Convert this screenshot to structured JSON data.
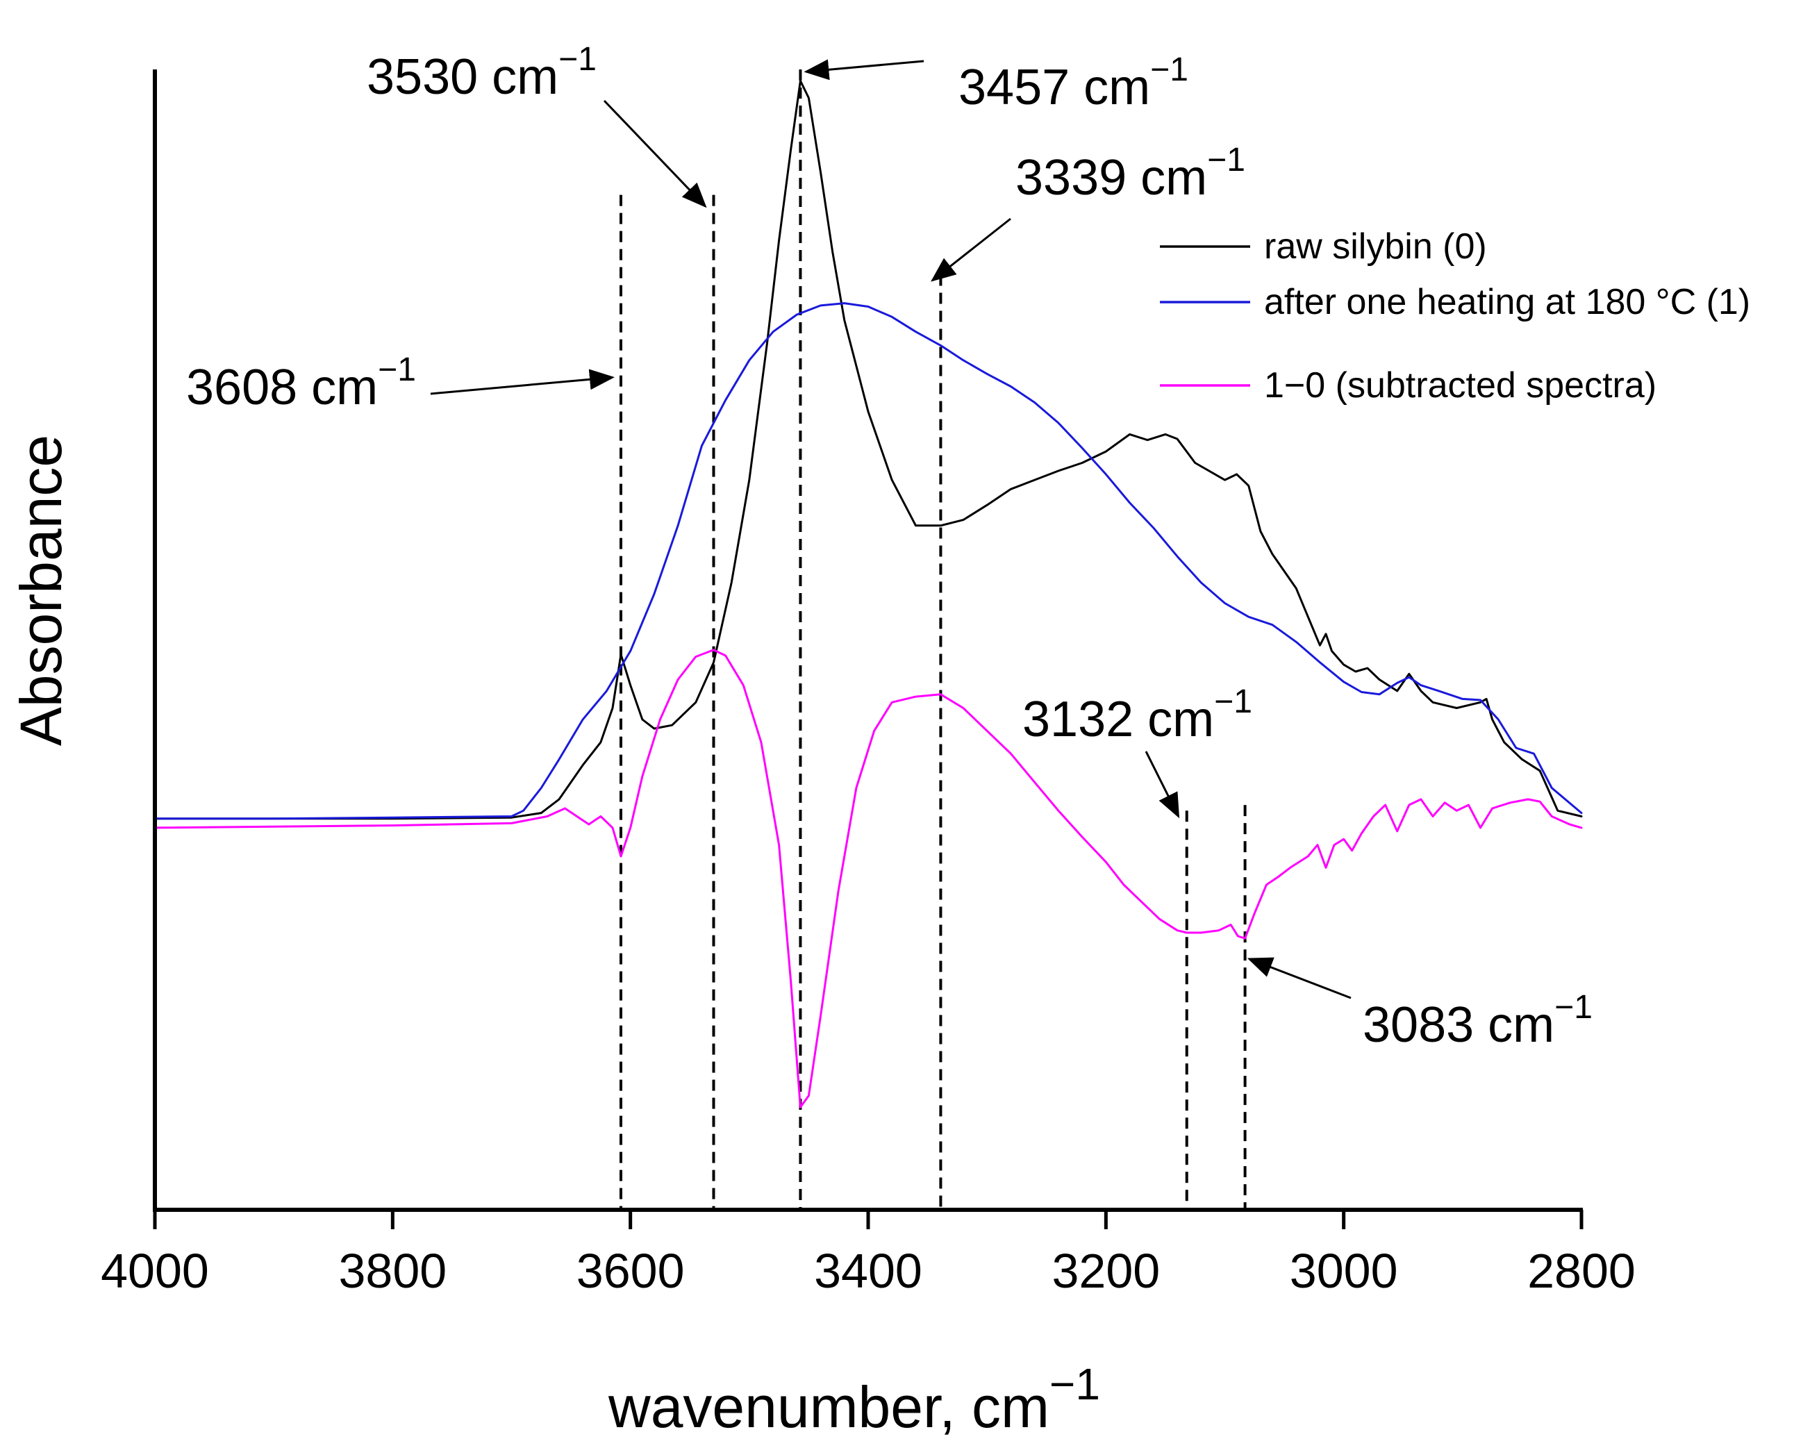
{
  "chart_data": {
    "type": "line",
    "title": "",
    "xlabel": "wavenumber, cm",
    "xlabel_sup": "−1",
    "ylabel": "Absorbance",
    "xlim": [
      4000,
      2800
    ],
    "ylim": [
      0,
      1
    ],
    "x_reversed": true,
    "grid": false,
    "legend_position": "top-right",
    "x_ticks": [
      {
        "value": 4000,
        "label": "4000"
      },
      {
        "value": 3800,
        "label": "3800"
      },
      {
        "value": 3600,
        "label": "3600"
      },
      {
        "value": 3400,
        "label": "3400"
      },
      {
        "value": 3200,
        "label": "3200"
      },
      {
        "value": 3000,
        "label": "3000"
      },
      {
        "value": 2800,
        "label": "2800"
      }
    ],
    "series": [
      {
        "name": "raw silybin (0)",
        "color": "#000000",
        "points": [
          [
            4000,
            0.343
          ],
          [
            3900,
            0.343
          ],
          [
            3800,
            0.343
          ],
          [
            3700,
            0.344
          ],
          [
            3675,
            0.348
          ],
          [
            3660,
            0.36
          ],
          [
            3640,
            0.39
          ],
          [
            3625,
            0.41
          ],
          [
            3615,
            0.44
          ],
          [
            3608,
            0.487
          ],
          [
            3600,
            0.46
          ],
          [
            3590,
            0.43
          ],
          [
            3580,
            0.422
          ],
          [
            3565,
            0.425
          ],
          [
            3545,
            0.445
          ],
          [
            3530,
            0.48
          ],
          [
            3515,
            0.55
          ],
          [
            3500,
            0.64
          ],
          [
            3485,
            0.76
          ],
          [
            3475,
            0.85
          ],
          [
            3465,
            0.93
          ],
          [
            3457,
            0.99
          ],
          [
            3450,
            0.975
          ],
          [
            3440,
            0.91
          ],
          [
            3430,
            0.84
          ],
          [
            3420,
            0.78
          ],
          [
            3400,
            0.7
          ],
          [
            3380,
            0.64
          ],
          [
            3360,
            0.6
          ],
          [
            3339,
            0.6
          ],
          [
            3320,
            0.605
          ],
          [
            3300,
            0.618
          ],
          [
            3280,
            0.632
          ],
          [
            3260,
            0.64
          ],
          [
            3240,
            0.648
          ],
          [
            3220,
            0.655
          ],
          [
            3200,
            0.665
          ],
          [
            3180,
            0.68
          ],
          [
            3165,
            0.675
          ],
          [
            3150,
            0.68
          ],
          [
            3140,
            0.676
          ],
          [
            3125,
            0.655
          ],
          [
            3100,
            0.64
          ],
          [
            3090,
            0.645
          ],
          [
            3080,
            0.635
          ],
          [
            3070,
            0.595
          ],
          [
            3060,
            0.575
          ],
          [
            3040,
            0.545
          ],
          [
            3030,
            0.52
          ],
          [
            3020,
            0.495
          ],
          [
            3015,
            0.505
          ],
          [
            3010,
            0.49
          ],
          [
            3000,
            0.478
          ],
          [
            2990,
            0.472
          ],
          [
            2980,
            0.475
          ],
          [
            2970,
            0.465
          ],
          [
            2955,
            0.455
          ],
          [
            2945,
            0.47
          ],
          [
            2935,
            0.455
          ],
          [
            2925,
            0.445
          ],
          [
            2905,
            0.44
          ],
          [
            2885,
            0.445
          ],
          [
            2880,
            0.448
          ],
          [
            2875,
            0.43
          ],
          [
            2865,
            0.41
          ],
          [
            2850,
            0.395
          ],
          [
            2835,
            0.385
          ],
          [
            2820,
            0.35
          ],
          [
            2800,
            0.345
          ]
        ]
      },
      {
        "name": "after one heating at 180 °C (1)",
        "color": "#1a1adb",
        "points": [
          [
            4000,
            0.343
          ],
          [
            3900,
            0.343
          ],
          [
            3800,
            0.344
          ],
          [
            3700,
            0.345
          ],
          [
            3690,
            0.35
          ],
          [
            3675,
            0.37
          ],
          [
            3660,
            0.395
          ],
          [
            3640,
            0.43
          ],
          [
            3620,
            0.455
          ],
          [
            3600,
            0.49
          ],
          [
            3580,
            0.54
          ],
          [
            3560,
            0.6
          ],
          [
            3540,
            0.67
          ],
          [
            3520,
            0.71
          ],
          [
            3500,
            0.745
          ],
          [
            3480,
            0.77
          ],
          [
            3460,
            0.785
          ],
          [
            3440,
            0.793
          ],
          [
            3420,
            0.795
          ],
          [
            3400,
            0.792
          ],
          [
            3380,
            0.783
          ],
          [
            3360,
            0.77
          ],
          [
            3339,
            0.758
          ],
          [
            3320,
            0.745
          ],
          [
            3300,
            0.733
          ],
          [
            3280,
            0.722
          ],
          [
            3260,
            0.708
          ],
          [
            3240,
            0.69
          ],
          [
            3220,
            0.668
          ],
          [
            3200,
            0.645
          ],
          [
            3180,
            0.62
          ],
          [
            3160,
            0.598
          ],
          [
            3140,
            0.573
          ],
          [
            3120,
            0.55
          ],
          [
            3100,
            0.532
          ],
          [
            3080,
            0.52
          ],
          [
            3060,
            0.513
          ],
          [
            3040,
            0.498
          ],
          [
            3020,
            0.48
          ],
          [
            3000,
            0.463
          ],
          [
            2985,
            0.454
          ],
          [
            2970,
            0.452
          ],
          [
            2955,
            0.462
          ],
          [
            2945,
            0.467
          ],
          [
            2935,
            0.46
          ],
          [
            2920,
            0.455
          ],
          [
            2900,
            0.448
          ],
          [
            2885,
            0.447
          ],
          [
            2870,
            0.43
          ],
          [
            2855,
            0.405
          ],
          [
            2840,
            0.4
          ],
          [
            2825,
            0.37
          ],
          [
            2800,
            0.348
          ]
        ]
      },
      {
        "name": "1−0 (subtracted spectra)",
        "color": "#ff00ff",
        "points": [
          [
            4000,
            0.335
          ],
          [
            3900,
            0.336
          ],
          [
            3800,
            0.337
          ],
          [
            3700,
            0.339
          ],
          [
            3670,
            0.345
          ],
          [
            3655,
            0.352
          ],
          [
            3645,
            0.345
          ],
          [
            3635,
            0.338
          ],
          [
            3625,
            0.345
          ],
          [
            3615,
            0.335
          ],
          [
            3608,
            0.31
          ],
          [
            3600,
            0.335
          ],
          [
            3590,
            0.38
          ],
          [
            3575,
            0.43
          ],
          [
            3560,
            0.465
          ],
          [
            3545,
            0.485
          ],
          [
            3530,
            0.491
          ],
          [
            3520,
            0.486
          ],
          [
            3505,
            0.46
          ],
          [
            3490,
            0.41
          ],
          [
            3475,
            0.32
          ],
          [
            3465,
            0.2
          ],
          [
            3457,
            0.09
          ],
          [
            3450,
            0.1
          ],
          [
            3440,
            0.17
          ],
          [
            3425,
            0.28
          ],
          [
            3410,
            0.37
          ],
          [
            3395,
            0.42
          ],
          [
            3380,
            0.445
          ],
          [
            3360,
            0.45
          ],
          [
            3339,
            0.452
          ],
          [
            3320,
            0.44
          ],
          [
            3300,
            0.42
          ],
          [
            3280,
            0.4
          ],
          [
            3260,
            0.375
          ],
          [
            3240,
            0.35
          ],
          [
            3220,
            0.327
          ],
          [
            3200,
            0.305
          ],
          [
            3185,
            0.285
          ],
          [
            3170,
            0.27
          ],
          [
            3155,
            0.255
          ],
          [
            3140,
            0.245
          ],
          [
            3132,
            0.243
          ],
          [
            3120,
            0.243
          ],
          [
            3105,
            0.245
          ],
          [
            3095,
            0.25
          ],
          [
            3089,
            0.24
          ],
          [
            3083,
            0.238
          ],
          [
            3075,
            0.26
          ],
          [
            3065,
            0.285
          ],
          [
            3055,
            0.292
          ],
          [
            3045,
            0.3
          ],
          [
            3030,
            0.31
          ],
          [
            3022,
            0.32
          ],
          [
            3015,
            0.3
          ],
          [
            3008,
            0.32
          ],
          [
            3000,
            0.325
          ],
          [
            2993,
            0.315
          ],
          [
            2985,
            0.33
          ],
          [
            2975,
            0.345
          ],
          [
            2965,
            0.355
          ],
          [
            2955,
            0.332
          ],
          [
            2945,
            0.355
          ],
          [
            2935,
            0.36
          ],
          [
            2925,
            0.345
          ],
          [
            2915,
            0.357
          ],
          [
            2905,
            0.35
          ],
          [
            2895,
            0.355
          ],
          [
            2885,
            0.335
          ],
          [
            2875,
            0.352
          ],
          [
            2860,
            0.357
          ],
          [
            2845,
            0.36
          ],
          [
            2835,
            0.358
          ],
          [
            2825,
            0.345
          ],
          [
            2810,
            0.338
          ],
          [
            2800,
            0.335
          ]
        ]
      }
    ],
    "guide_lines": [
      {
        "x": 3608,
        "y_top": 0.89
      },
      {
        "x": 3530,
        "y_top": 0.89
      },
      {
        "x": 3457,
        "y_top": 1.0
      },
      {
        "x": 3339,
        "y_top": 0.82
      },
      {
        "x": 3132,
        "y_top": 0.35
      },
      {
        "x": 3083,
        "y_top": 0.355
      }
    ],
    "annotations": [
      {
        "text": "3608 cm",
        "sup": "−1",
        "target_x": 3608,
        "target_y": 0.73
      },
      {
        "text": "3530 cm",
        "sup": "−1",
        "target_x": 3530,
        "target_y": 0.88
      },
      {
        "text": "3457 cm",
        "sup": "−1",
        "target_x": 3457,
        "target_y": 0.998
      },
      {
        "text": "3339 cm",
        "sup": "−1",
        "target_x": 3339,
        "target_y": 0.815
      },
      {
        "text": "3132 cm",
        "sup": "−1",
        "target_x": 3132,
        "target_y": 0.345
      },
      {
        "text": "3083 cm",
        "sup": "−1",
        "target_x": 3083,
        "target_y": 0.22
      }
    ]
  }
}
